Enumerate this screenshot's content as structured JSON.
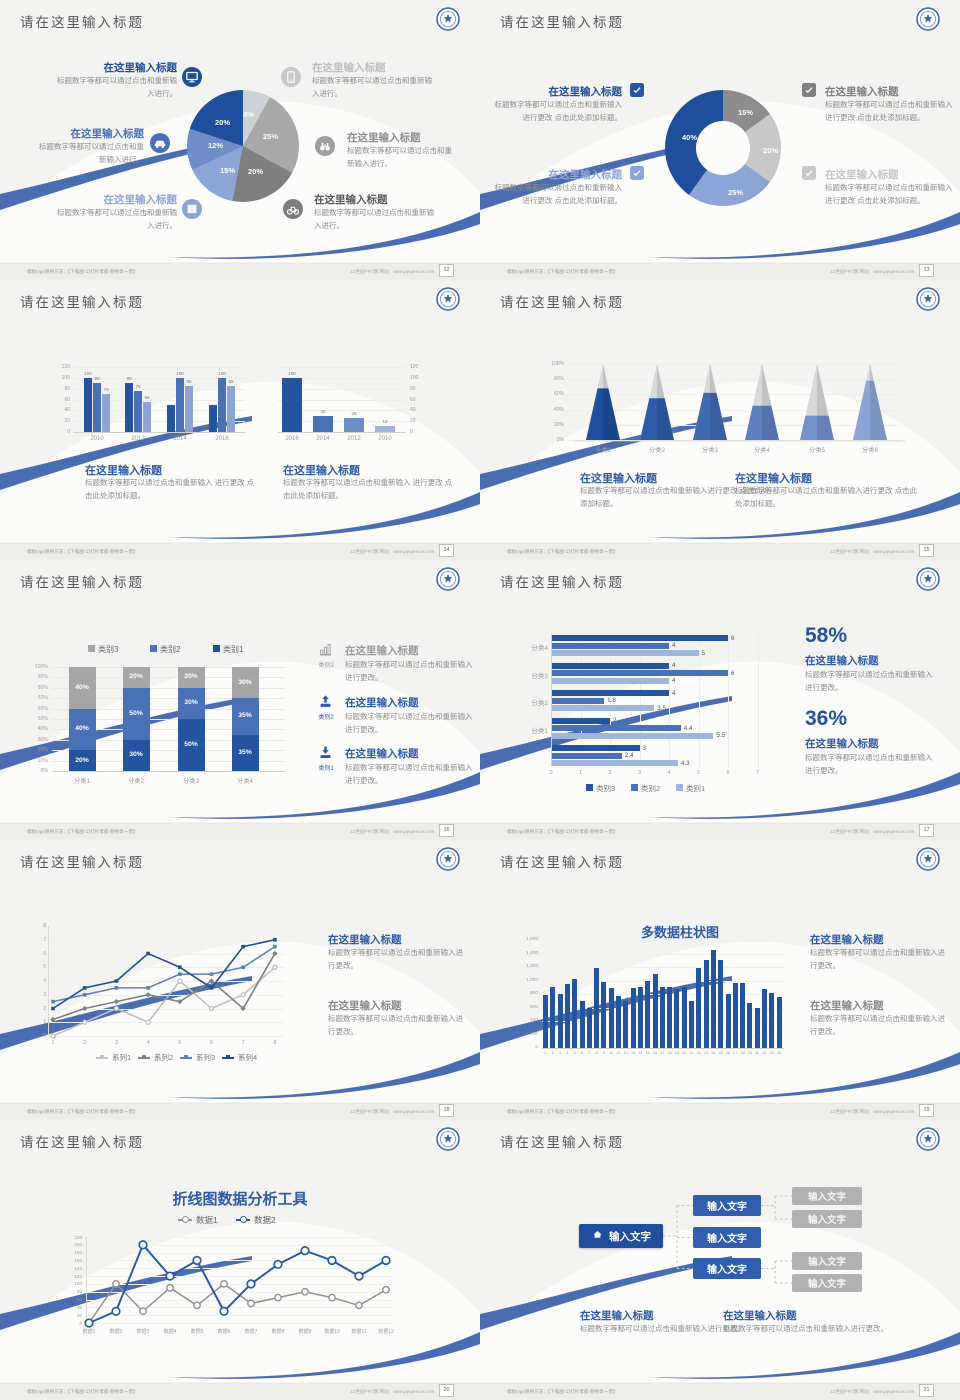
{
  "header_title": "请在这里输入标题",
  "logo": "school-emblem",
  "footer": {
    "left": "模板logo替换方法：【下载图-幻灯片母版-替换第一页】",
    "right": "21世纪PPT网  网址：www.pptgenius.com"
  },
  "slides": [
    {
      "page": "12",
      "type": "pie",
      "chart": 0,
      "left_blocks": [
        {
          "title": "在这里输入标题",
          "title_color": "#1F4E9C",
          "icon": "monitor-icon",
          "icon_color": "#1F4E9C",
          "body": "标题数字等都可以通过点击和重新输入进行。"
        },
        {
          "title": "在这里输入标题",
          "title_color": "#4A71B8",
          "icon": "car-icon",
          "icon_color": "#4A71B8",
          "body": "标题数字等都可以通过点击和重新输入进行。"
        },
        {
          "title": "在这里输入标题",
          "title_color": "#8CA5D6",
          "icon": "book-icon",
          "icon_color": "#8CA5D6",
          "body": "标题数字等都可以通过点击和重新输入进行。"
        }
      ],
      "right_blocks": [
        {
          "title": "在这里输入标题",
          "title_color": "#BFBFBF",
          "icon": "phone-icon",
          "icon_color": "#C9C9C9",
          "body": "标题数字等都可以通过点击和重新输入进行。"
        },
        {
          "title": "在这里输入标题",
          "title_color": "#8F8F8F",
          "icon": "binoculars-icon",
          "icon_color": "#9E9E9E",
          "body": "标题数字等都可以通过点击和重新输入进行。"
        },
        {
          "title": "在这里输入标题",
          "title_color": "#595959",
          "icon": "bike-icon",
          "icon_color": "#7C7C7C",
          "body": "标题数字等都可以通过点击和重新输入进行。"
        }
      ]
    },
    {
      "page": "13",
      "type": "donut",
      "chart": 1,
      "left_blocks": [
        {
          "title": "在这里输入标题",
          "title_color": "#1F4E9C",
          "check_color": "#2456A4",
          "body": "标题数字等都可以通过点击和重新输入进行更改 点击此处添加标题。"
        },
        {
          "title": "在这里输入标题",
          "title_color": "#8CA5D6",
          "check_color": "#8CA5D6",
          "body": "标题数字等都可以通过点击和重新输入进行更改 点击此处添加标题。"
        }
      ],
      "right_blocks": [
        {
          "title": "在这里输入标题",
          "title_color": "#7F7F7F",
          "check_color": "#7F7F7F",
          "body": "标题数字等都可以通过点击和重新输入进行更改 点击此处添加标题。"
        },
        {
          "title": "在这里输入标题",
          "title_color": "#C6C6C6",
          "check_color": "#C9C9C9",
          "body": "标题数字等都可以通过点击和重新输入进行更改 点击此处添加标题。"
        }
      ]
    },
    {
      "page": "14",
      "type": "bars2",
      "charts": [
        2,
        3
      ],
      "blocks": [
        {
          "title": "在这里输入标题",
          "body": "标题数字等都可以通过点击和重新输入 进行更改 点击此处添加标题。"
        },
        {
          "title": "在这里输入标题",
          "body": "标题数字等都可以通过点击和重新输入 进行更改 点击此处添加标题。"
        }
      ]
    },
    {
      "page": "15",
      "type": "pyramid",
      "chart": 4,
      "blocks": [
        {
          "title": "在这里输入标题",
          "body": "标题数字等都可以通过点击和重新输入进行更改 点击此处添加标题。"
        },
        {
          "title": "在这里输入标题",
          "body": "标题数字等都可以通过点击和重新输入进行更改 点击此处添加标题。"
        }
      ]
    },
    {
      "page": "16",
      "type": "stacked",
      "chart": 5,
      "items": [
        {
          "icon": "bar-chart-icon",
          "icon_color": "#8C8C8C",
          "label": "类别3",
          "label_color": "#9B9B9B",
          "title": "在这里输入标题",
          "title_color": "#9B9B9B",
          "body": "标题数字等都可以通过点击和重新输入进行更改。"
        },
        {
          "icon": "upload-icon",
          "icon_color": "#2E5AA8",
          "label": "类别2",
          "label_color": "#2E5AA8",
          "title": "在这里输入标题",
          "title_color": "#2E5AA8",
          "body": "标题数字等都可以通过点击和重新输入进行更改。"
        },
        {
          "icon": "download-icon",
          "icon_color": "#2E5AA8",
          "label": "类别1",
          "label_color": "#2E5AA8",
          "title": "在这里输入标题",
          "title_color": "#2E5AA8",
          "body": "标题数字等都可以通过点击和重新输入进行更改。"
        }
      ]
    },
    {
      "page": "17",
      "type": "hbar",
      "chart": 6,
      "stats": [
        {
          "value": "58%",
          "title": "在这里输入标题",
          "body": "标题数字等都可以通过点击和重新输入进行更改。"
        },
        {
          "value": "36%",
          "title": "在这里输入标题",
          "body": "标题数字等都可以通过点击和重新输入进行更改。"
        }
      ]
    },
    {
      "page": "18",
      "type": "line4",
      "chart": 7,
      "blocks": [
        {
          "title": "在这里输入标题",
          "title_color": "#2E5AA8",
          "body": "标题数字等都可以通过点击和重新输入进行更改。"
        },
        {
          "title": "在这里输入标题",
          "title_color": "#8A8A8A",
          "body": "标题数字等都可以通过点击和重新输入进行更改。"
        }
      ]
    },
    {
      "page": "19",
      "type": "cols",
      "chart": 8,
      "blocks": [
        {
          "title": "在这里输入标题",
          "title_color": "#2E5AA8",
          "body": "标题数字等都可以通过点击和重新输入进行更改。"
        },
        {
          "title": "在这里输入标题",
          "title_color": "#8A8A8A",
          "body": "标题数字等都可以通过点击和重新输入进行更改。"
        }
      ]
    },
    {
      "page": "20",
      "type": "line2",
      "chart": 9
    },
    {
      "page": "21",
      "type": "tree",
      "tree": {
        "root": "输入文字",
        "root_icon": "home-icon",
        "mids": [
          "输入文字",
          "输入文字",
          "输入文字"
        ],
        "leaves": [
          "输入文字",
          "输入文字",
          "输入文字",
          "输入文字"
        ]
      },
      "blocks": [
        {
          "title": "在这里输入标题",
          "body": "标题数字等都可以通过点击和重新输入进行更改。"
        },
        {
          "title": "在这里输入标题",
          "body": "标题数字等都可以通过点击和重新输入进行更改。"
        }
      ]
    }
  ],
  "chart_data": [
    {
      "type": "pie",
      "note": "clockwise from 12 o'clock",
      "labels": [
        "8%",
        "25%",
        "20%",
        "15%",
        "12%",
        "20%"
      ],
      "values": [
        8,
        25,
        20,
        15,
        12,
        20
      ],
      "colors": [
        "#CDD2D9",
        "#A9A9A9",
        "#7F7F7F",
        "#8CA5D6",
        "#6F8DC9",
        "#1F4E9C"
      ]
    },
    {
      "type": "pie",
      "subtype": "donut",
      "labels": [
        "15%",
        "20%",
        "25%",
        "40%"
      ],
      "values": [
        15,
        20,
        25,
        40
      ],
      "colors": [
        "#8C8C8C",
        "#C8C8C8",
        "#8CA5D6",
        "#1F4E9C"
      ]
    },
    {
      "type": "bar",
      "categories": [
        "2010",
        "2012",
        "2014",
        "2016"
      ],
      "ylim": [
        0,
        120
      ],
      "yticks": [
        "0",
        "20",
        "40",
        "60",
        "80",
        "100",
        "120"
      ],
      "series": [
        {
          "name": "系列1",
          "color": "#24549F",
          "values": [
            100,
            90,
            50,
            50
          ],
          "labels": [
            "100",
            "90",
            "",
            ""
          ]
        },
        {
          "name": "系列2",
          "color": "#4A71B8",
          "values": [
            90,
            75,
            100,
            100
          ],
          "labels": [
            "90",
            "75",
            "100",
            "100"
          ]
        },
        {
          "name": "系列3",
          "color": "#8CA5D6",
          "values": [
            70,
            55,
            85,
            85
          ],
          "labels": [
            "70",
            "55",
            "85",
            "85"
          ]
        }
      ]
    },
    {
      "type": "bar",
      "categories": [
        "2016",
        "2014",
        "2012",
        "2010"
      ],
      "ylim": [
        0,
        120
      ],
      "yticks": [
        "0",
        "20",
        "40",
        "60",
        "80",
        "100",
        "120"
      ],
      "values": [
        100,
        30,
        25,
        12
      ],
      "labels": [
        "100",
        "30",
        "25",
        "12"
      ],
      "bar_colors": [
        "#24549F",
        "#4A71B8",
        "#6F8DC9",
        "#9DB4DC"
      ]
    },
    {
      "type": "bar",
      "subtype": "pyramid",
      "categories": [
        "分类1",
        "分类2",
        "分类3",
        "分类4",
        "分类5",
        "分类6"
      ],
      "values": [
        68,
        55,
        62,
        45,
        32,
        78
      ],
      "ylim": [
        0,
        100
      ],
      "yticks": [
        "0%",
        "20%",
        "40%",
        "60%",
        "80%",
        "100%"
      ],
      "colors": [
        "#1F4E9C",
        "#2F5CA8",
        "#3F69B0",
        "#5E80C0",
        "#7491CC",
        "#8CA5D6"
      ],
      "tip_color": "#D9D9D9"
    },
    {
      "type": "bar",
      "subtype": "stacked_percent",
      "categories": [
        "分类1",
        "分类2",
        "分类3",
        "分类4"
      ],
      "yticks": [
        "0%",
        "10%",
        "20%",
        "30%",
        "40%",
        "50%",
        "60%",
        "70%",
        "80%",
        "90%",
        "100%"
      ],
      "legend": [
        "类别3",
        "类别2",
        "类别1"
      ],
      "series": [
        {
          "name": "类别1",
          "color": "#24549F",
          "values": [
            20,
            30,
            50,
            35
          ],
          "labels": [
            "20%",
            "30%",
            "50%",
            "35%"
          ]
        },
        {
          "name": "类别2",
          "color": "#4A71B8",
          "values": [
            40,
            50,
            30,
            35
          ],
          "labels": [
            "40%",
            "50%",
            "30%",
            "35%"
          ]
        },
        {
          "name": "类别3",
          "color": "#A6A6A6",
          "values": [
            40,
            20,
            20,
            30
          ],
          "labels": [
            "40%",
            "20%",
            "20%",
            "30%"
          ]
        }
      ]
    },
    {
      "type": "bar",
      "subtype": "horizontal",
      "categories": [
        "分类4",
        "分类3",
        "分类2",
        "分类1",
        ""
      ],
      "xlim": [
        0,
        7
      ],
      "xticks": [
        "0",
        "1",
        "2",
        "3",
        "4",
        "5",
        "6",
        "7"
      ],
      "series": [
        {
          "name": "类别3",
          "color": "#24549F",
          "values": [
            6,
            4,
            4,
            2,
            3
          ]
        },
        {
          "name": "类别2",
          "color": "#4A71B8",
          "values": [
            4,
            6,
            1.8,
            4.4,
            2.4
          ]
        },
        {
          "name": "类别1",
          "color": "#9FB5DB",
          "values": [
            5,
            4,
            3.5,
            5.5,
            4.3
          ]
        }
      ]
    },
    {
      "type": "line",
      "x": [
        "1",
        "2",
        "3",
        "4",
        "5",
        "6",
        "7",
        "8"
      ],
      "ylim": [
        0,
        8
      ],
      "series": [
        {
          "name": "系列1",
          "color": "#C0C0C0",
          "marker": "circle",
          "values": [
            0,
            1,
            2,
            1,
            4,
            2,
            3,
            5
          ]
        },
        {
          "name": "系列2",
          "color": "#7F7F7F",
          "marker": "diamond",
          "values": [
            1.2,
            2,
            2.5,
            3,
            2.5,
            4,
            2,
            6
          ]
        },
        {
          "name": "系列3",
          "color": "#5B7FC4",
          "marker": "square",
          "values": [
            2.5,
            3,
            3.5,
            3.5,
            4.5,
            4.5,
            5,
            6.5
          ]
        },
        {
          "name": "系列4",
          "color": "#1F4E9C",
          "marker": "square",
          "values": [
            2,
            3.5,
            4,
            6,
            5,
            3.5,
            6.5,
            7
          ]
        }
      ]
    },
    {
      "type": "bar",
      "title": "多数据柱状图",
      "color": "#24549F",
      "ylim": [
        0,
        1600
      ],
      "yticks": [
        "0",
        "200",
        "400",
        "600",
        "800",
        "1,000",
        "1,200",
        "1,400",
        "1,600"
      ],
      "values": [
        780,
        900,
        800,
        950,
        1020,
        700,
        600,
        1190,
        980,
        890,
        770,
        690,
        890,
        900,
        1000,
        1090,
        900,
        900,
        880,
        900,
        700,
        1190,
        1300,
        1450,
        1300,
        800,
        960,
        970,
        660,
        590,
        870,
        820,
        760
      ]
    },
    {
      "type": "line",
      "title": "折线图数据分析工具",
      "ylim": [
        0,
        220
      ],
      "categories": [
        "数据1",
        "数据2",
        "数据3",
        "数据4",
        "数据5",
        "数据6",
        "数据7",
        "数据8",
        "数据9",
        "数据10",
        "数据11",
        "数据12"
      ],
      "series": [
        {
          "name": "数据1",
          "color": "#919191",
          "values": [
            0,
            100,
            30,
            90,
            45,
            100,
            50,
            65,
            80,
            65,
            45,
            85
          ]
        },
        {
          "name": "数据2",
          "color": "#2B5AA7",
          "values": [
            0,
            30,
            200,
            120,
            160,
            30,
            100,
            150,
            185,
            160,
            120,
            160
          ]
        }
      ]
    }
  ]
}
